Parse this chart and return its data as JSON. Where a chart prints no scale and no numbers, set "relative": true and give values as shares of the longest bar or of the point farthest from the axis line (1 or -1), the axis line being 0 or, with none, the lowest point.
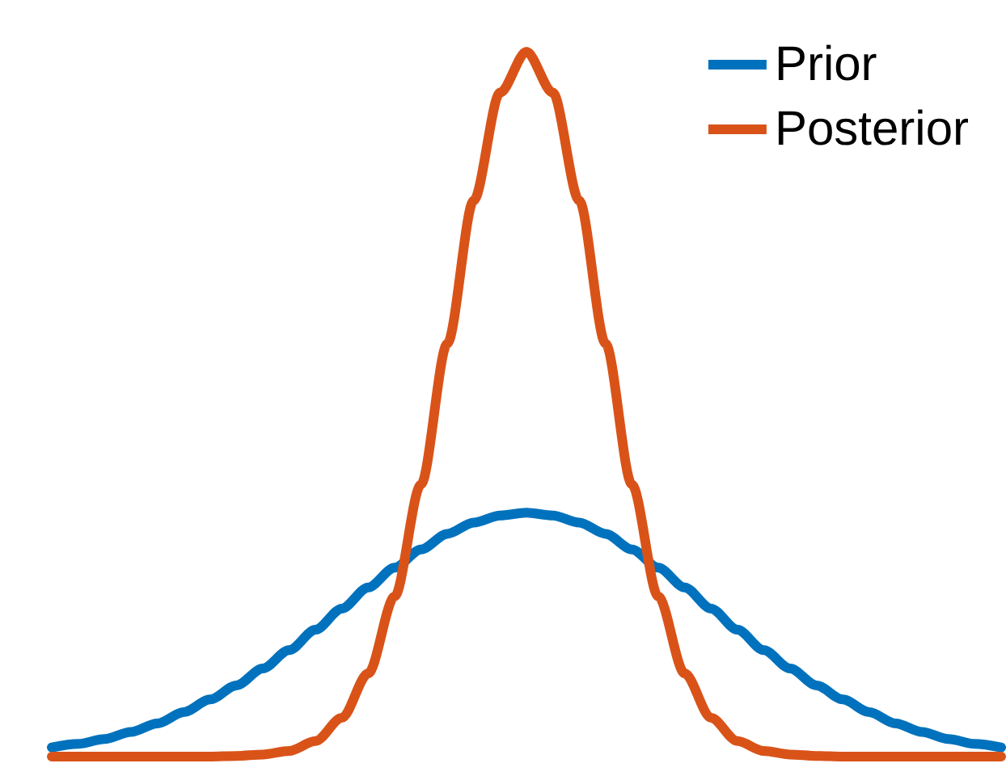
{
  "chart_data": {
    "type": "line",
    "relative": true,
    "legend": "top right",
    "marker": "none",
    "line_style": "solid",
    "grid": false,
    "categories": [
      null,
      null,
      null,
      null,
      null,
      null,
      null,
      null,
      null,
      null,
      null,
      null,
      null,
      null,
      null,
      null,
      null,
      null,
      null,
      null,
      null,
      null,
      null,
      null,
      null,
      null,
      null,
      null,
      null,
      null,
      null,
      null,
      null,
      null,
      null,
      null,
      null
    ],
    "series": [
      {
        "name": "Prior",
        "color": "#0072bd",
        "values": [
          0.013,
          0.018,
          0.025,
          0.035,
          0.047,
          0.063,
          0.081,
          0.101,
          0.125,
          0.151,
          0.18,
          0.21,
          0.24,
          0.268,
          0.294,
          0.316,
          0.332,
          0.342,
          0.346,
          0.342,
          0.332,
          0.316,
          0.294,
          0.268,
          0.24,
          0.21,
          0.18,
          0.151,
          0.125,
          0.101,
          0.081,
          0.063,
          0.047,
          0.035,
          0.025,
          0.018,
          0.013
        ]
      },
      {
        "name": "Posterior",
        "color": "#d95319",
        "values": [
          0,
          0,
          0,
          0,
          0,
          0,
          0,
          0.001,
          0.003,
          0.008,
          0.022,
          0.055,
          0.118,
          0.227,
          0.386,
          0.586,
          0.789,
          0.942,
          1,
          0.942,
          0.789,
          0.586,
          0.386,
          0.227,
          0.118,
          0.055,
          0.022,
          0.008,
          0.003,
          0.001,
          0,
          0,
          0,
          0,
          0,
          0,
          0
        ]
      }
    ]
  }
}
